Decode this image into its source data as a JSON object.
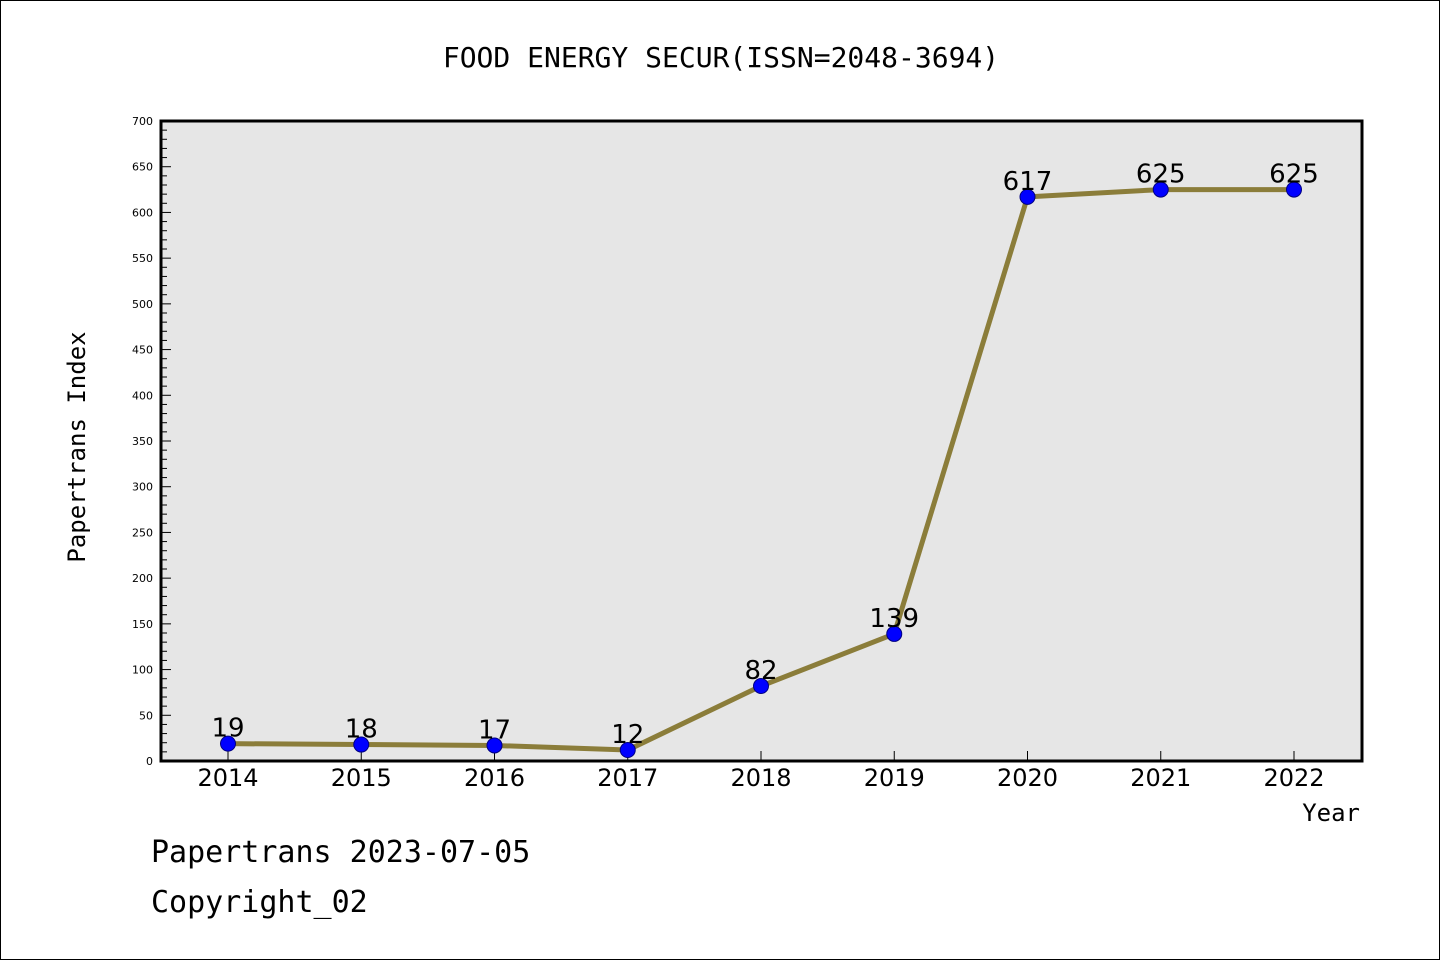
{
  "chart_data": {
    "type": "line",
    "title": "FOOD ENERGY SECUR(ISSN=2048-3694)",
    "xlabel": "Year",
    "ylabel": "Papertrans Index",
    "categories": [
      "2014",
      "2015",
      "2016",
      "2017",
      "2018",
      "2019",
      "2020",
      "2021",
      "2022"
    ],
    "series": [
      {
        "values": [
          19,
          18,
          17,
          12,
          82,
          139,
          617,
          625,
          625
        ]
      }
    ],
    "data_labels": [
      "19",
      "18",
      "17",
      "12",
      "82",
      "139",
      "617",
      "625",
      "625"
    ],
    "ylim": [
      0,
      700
    ],
    "yticks": [
      0,
      50,
      100,
      150,
      200,
      250,
      300,
      350,
      400,
      450,
      500,
      550,
      600,
      650,
      700
    ],
    "grid": false,
    "legend": "none",
    "colors": {
      "plot_background": "#e6e6e6",
      "line": "#8b7d3a",
      "marker_fill": "#0000ff",
      "marker_edge": "#000080",
      "axis": "#000000"
    }
  },
  "footer": {
    "line1": "Papertrans 2023-07-05",
    "line2": "Copyright_02"
  }
}
